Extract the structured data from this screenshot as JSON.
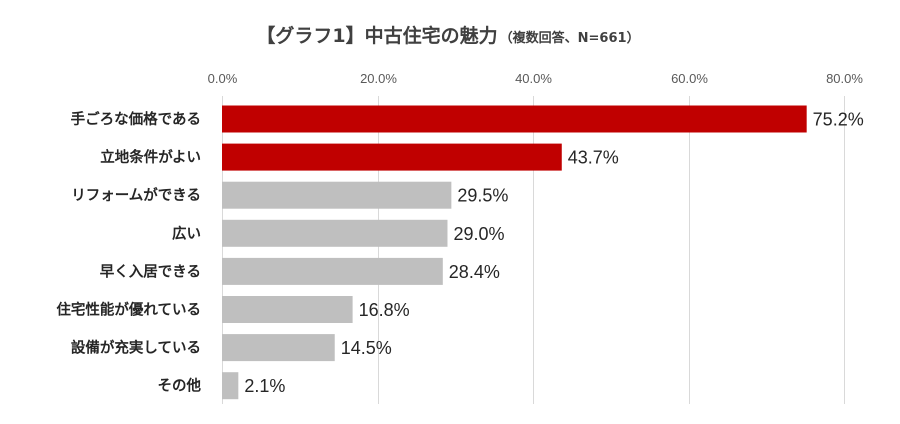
{
  "chart_data": {
    "type": "bar",
    "orientation": "horizontal",
    "title": "【グラフ1】中古住宅の魅力",
    "subtitle": "（複数回答、N=661）",
    "categories": [
      "手ごろな価格である",
      "立地条件がよい",
      "リフォームができる",
      "広い",
      "早く入居できる",
      "住宅性能が優れている",
      "設備が充実している",
      "その他"
    ],
    "values": [
      75.2,
      43.7,
      29.5,
      29.0,
      28.4,
      16.8,
      14.5,
      2.1
    ],
    "value_labels": [
      "75.2%",
      "43.7%",
      "29.5%",
      "29.0%",
      "28.4%",
      "16.8%",
      "14.5%",
      "2.1%"
    ],
    "xlim": [
      0,
      80
    ],
    "x_ticks": [
      0,
      20,
      40,
      60,
      80
    ],
    "x_tick_labels": [
      "0.0%",
      "20.0%",
      "40.0%",
      "60.0%",
      "80.0%"
    ],
    "x_axis_position": "top",
    "grid": true,
    "legend": false,
    "colors": {
      "highlight": "#c00000",
      "default": "#bfbfbf",
      "highlight_count": 2
    }
  }
}
